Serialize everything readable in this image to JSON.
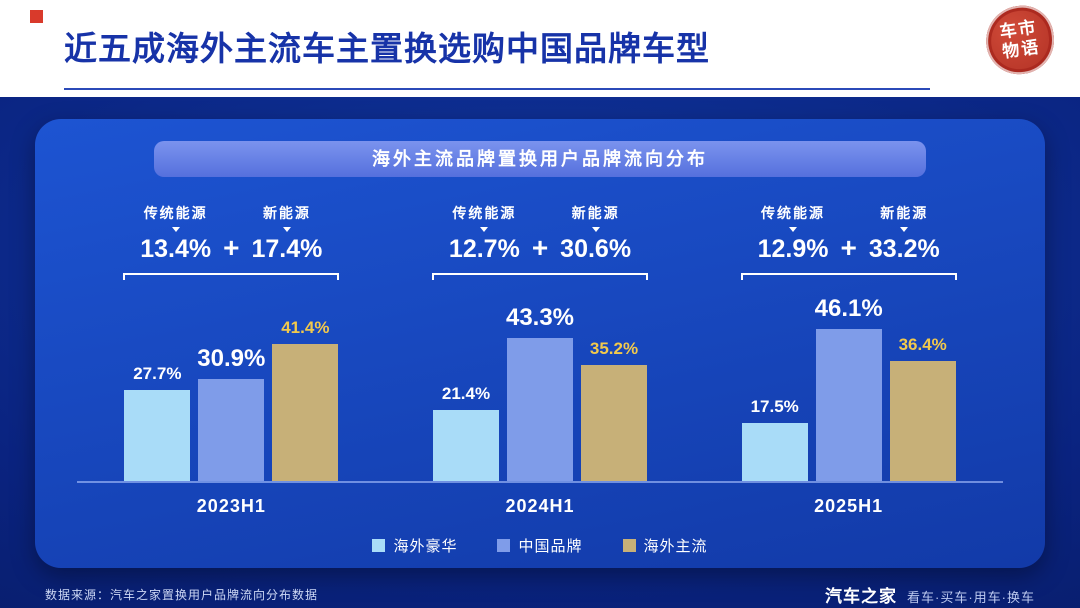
{
  "header": {
    "title": "近五成海外主流车主置换选购中国品牌车型",
    "seal_line1": "车市",
    "seal_line2": "物语",
    "accent_color": "#d93a2b",
    "title_color": "#1733a8"
  },
  "banner": {
    "text": "海外主流品牌置换用户品牌流向分布"
  },
  "chart_data": {
    "type": "bar",
    "title": "海外主流品牌置换用户品牌流向分布",
    "unit": "%",
    "categories": [
      "2023H1",
      "2024H1",
      "2025H1"
    ],
    "series": [
      {
        "name": "海外豪华",
        "values": [
          27.7,
          21.4,
          17.5
        ],
        "color": "#a9dcf8",
        "label_color": "#ffffff",
        "label_size": 17
      },
      {
        "name": "中国品牌",
        "values": [
          30.9,
          43.3,
          46.1
        ],
        "color": "#7f9ce9",
        "label_color": "#ffffff",
        "label_size": 24
      },
      {
        "name": "海外主流",
        "values": [
          41.4,
          35.2,
          36.4
        ],
        "color": "#c7b078",
        "label_color": "#f2c94c",
        "label_size": 17
      }
    ],
    "annotations": [
      {
        "labels": [
          "传统能源",
          "新能源"
        ],
        "values": [
          13.4,
          17.4
        ]
      },
      {
        "labels": [
          "传统能源",
          "新能源"
        ],
        "values": [
          12.7,
          30.6
        ]
      },
      {
        "labels": [
          "传统能源",
          "新能源"
        ],
        "values": [
          12.9,
          33.2
        ]
      }
    ],
    "legend_position": "bottom",
    "ylim": [
      0,
      50
    ],
    "grid": false
  },
  "footer": {
    "source": "数据来源：汽车之家置换用户品牌流向分布数据",
    "brand": "汽车之家",
    "tagline": "看车·买车·用车·换车"
  }
}
